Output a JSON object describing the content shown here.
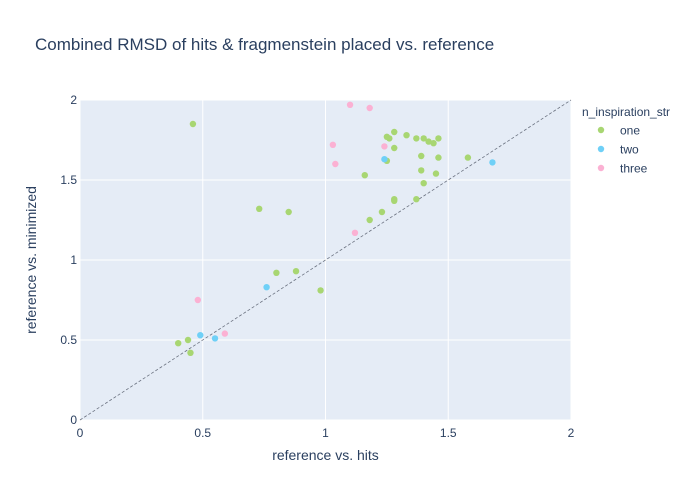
{
  "chart_data": {
    "type": "scatter",
    "title": "Combined RMSD of hits & fragmenstein placed vs. reference",
    "xlabel": "reference vs. hits",
    "ylabel": "reference vs. minimized",
    "xlim": [
      0,
      2
    ],
    "ylim": [
      0,
      2
    ],
    "xticks": [
      0,
      0.5,
      1,
      1.5,
      2
    ],
    "yticks": [
      0,
      0.5,
      1,
      1.5,
      2
    ],
    "xtick_labels": [
      "0",
      "0.5",
      "1",
      "1.5",
      "2"
    ],
    "ytick_labels": [
      "0",
      "0.5",
      "1",
      "1.5",
      "2"
    ],
    "grid": true,
    "legend_position": "top-right",
    "legend_title": "n_inspiration_str",
    "reference_line": {
      "from": [
        0,
        0
      ],
      "to": [
        2,
        2
      ],
      "style": "dashed"
    },
    "series": [
      {
        "name": "one",
        "color": "#a8d672",
        "points": [
          [
            0.46,
            1.85
          ],
          [
            0.73,
            1.32
          ],
          [
            0.85,
            1.3
          ],
          [
            0.8,
            0.92
          ],
          [
            0.88,
            0.93
          ],
          [
            0.98,
            0.81
          ],
          [
            0.4,
            0.48
          ],
          [
            0.44,
            0.5
          ],
          [
            0.45,
            0.42
          ],
          [
            1.16,
            1.53
          ],
          [
            1.18,
            1.25
          ],
          [
            1.23,
            1.3
          ],
          [
            1.25,
            1.77
          ],
          [
            1.26,
            1.76
          ],
          [
            1.25,
            1.62
          ],
          [
            1.28,
            1.8
          ],
          [
            1.28,
            1.7
          ],
          [
            1.28,
            1.38
          ],
          [
            1.28,
            1.37
          ],
          [
            1.33,
            1.78
          ],
          [
            1.37,
            1.76
          ],
          [
            1.37,
            1.38
          ],
          [
            1.39,
            1.65
          ],
          [
            1.39,
            1.56
          ],
          [
            1.4,
            1.76
          ],
          [
            1.4,
            1.48
          ],
          [
            1.42,
            1.74
          ],
          [
            1.44,
            1.73
          ],
          [
            1.45,
            1.54
          ],
          [
            1.46,
            1.64
          ],
          [
            1.46,
            1.76
          ],
          [
            1.58,
            1.64
          ]
        ]
      },
      {
        "name": "two",
        "color": "#6fd0f7",
        "points": [
          [
            0.49,
            0.53
          ],
          [
            0.55,
            0.51
          ],
          [
            0.76,
            0.83
          ],
          [
            1.24,
            1.63
          ],
          [
            1.68,
            1.61
          ]
        ]
      },
      {
        "name": "three",
        "color": "#fbb1d3",
        "points": [
          [
            0.48,
            0.75
          ],
          [
            0.59,
            0.54
          ],
          [
            1.03,
            1.72
          ],
          [
            1.04,
            1.6
          ],
          [
            1.1,
            1.97
          ],
          [
            1.12,
            1.17
          ],
          [
            1.18,
            1.95
          ],
          [
            1.24,
            1.71
          ]
        ]
      }
    ]
  }
}
